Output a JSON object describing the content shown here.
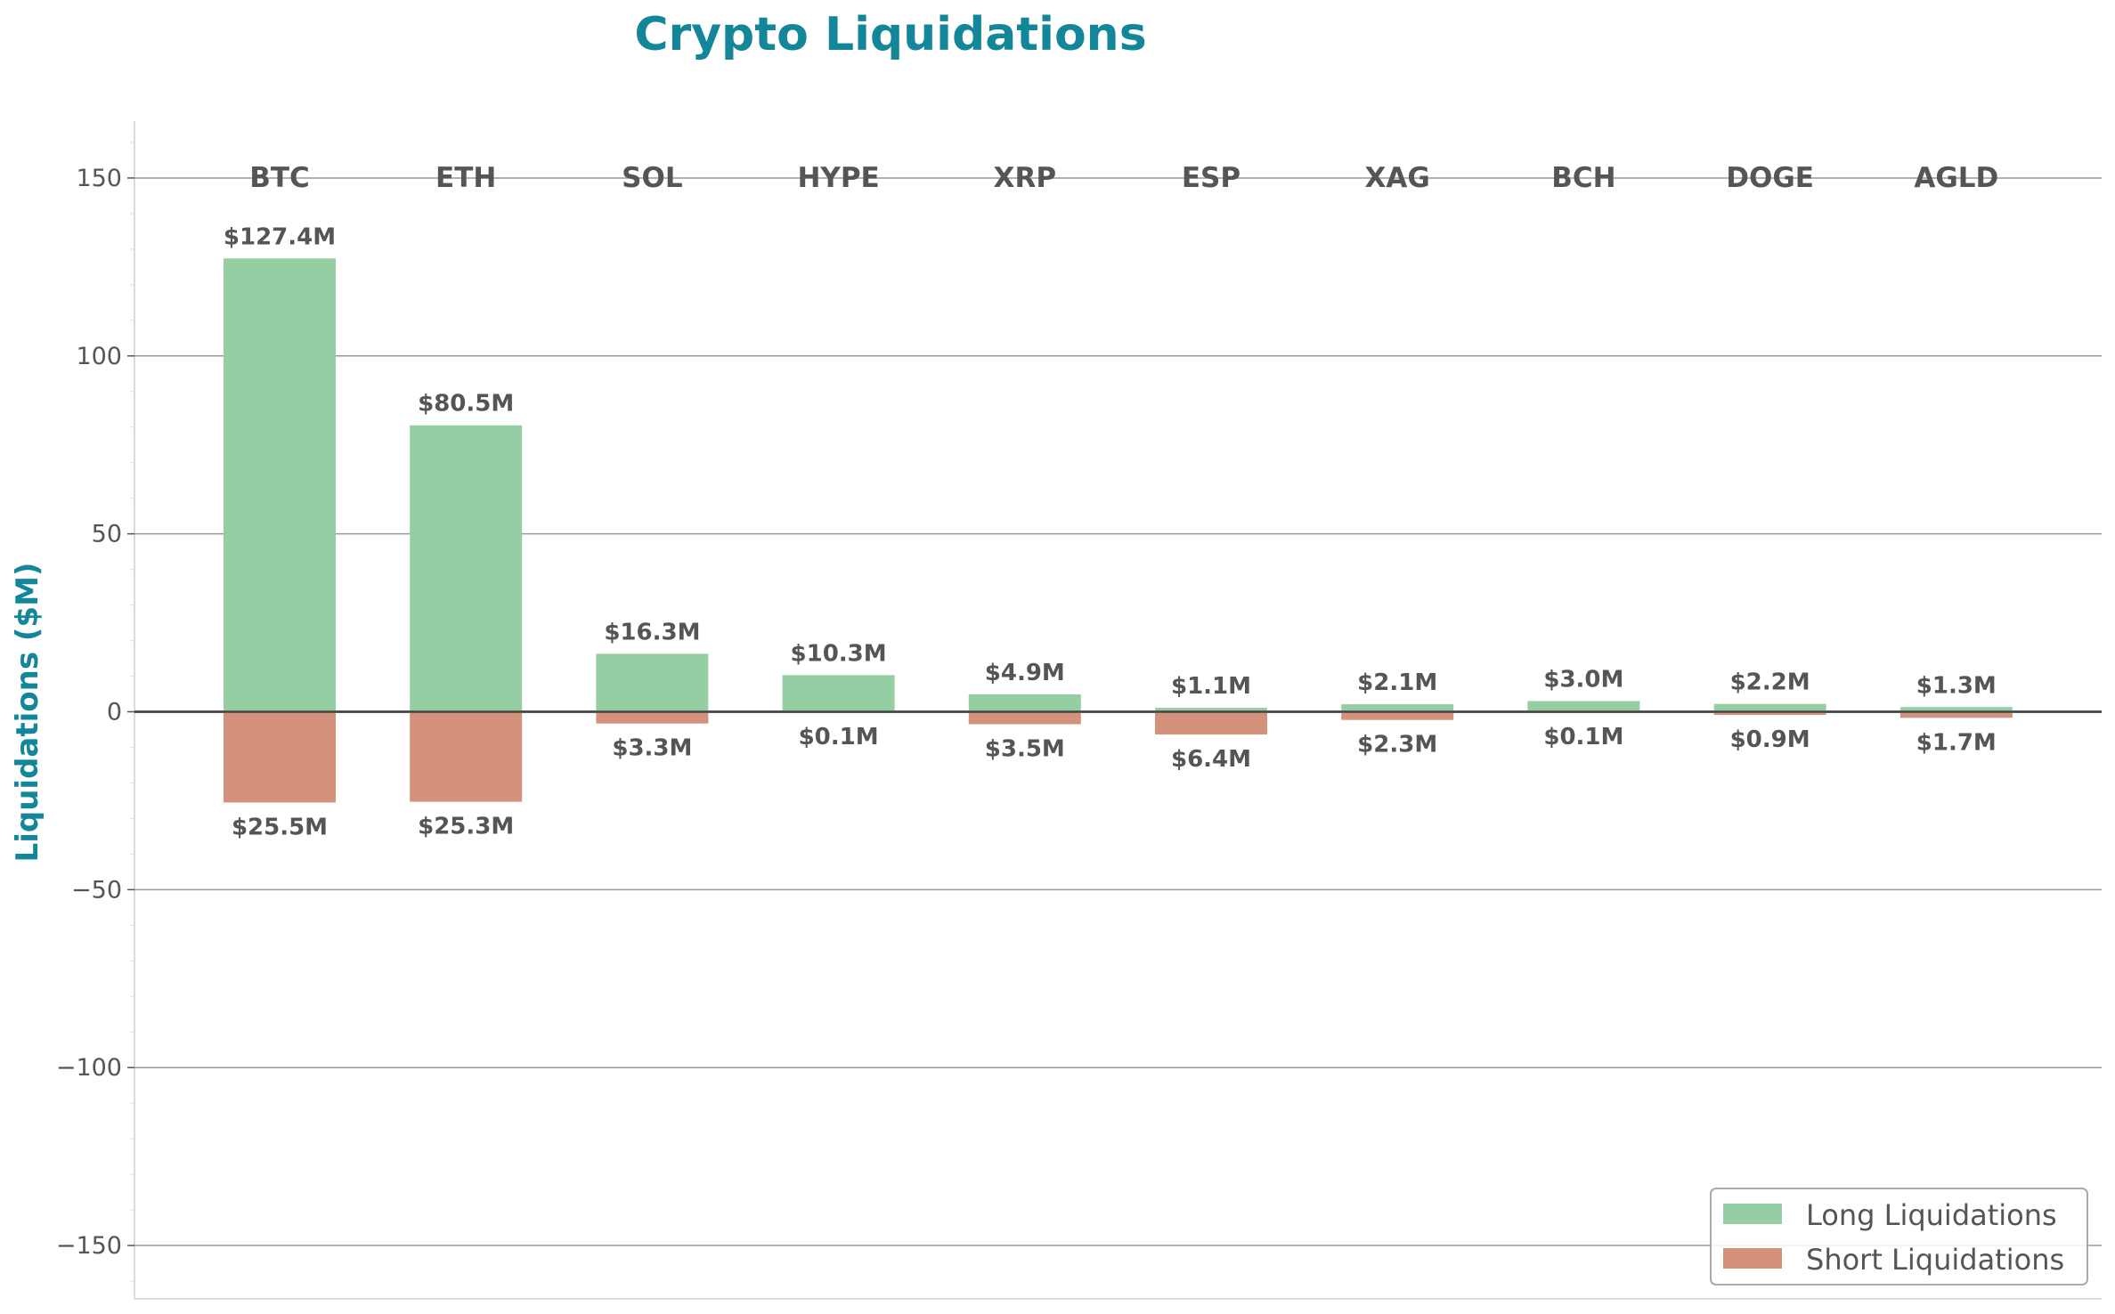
{
  "chart_data": {
    "type": "bar",
    "title": "Crypto Liquidations",
    "xlabel": "",
    "ylabel": "Liquidations ($M)",
    "ylim": [
      -165,
      166
    ],
    "yticks": [
      150,
      100,
      50,
      0,
      -50,
      -100,
      -150
    ],
    "ytick_labels": [
      "150",
      "100",
      "50",
      "0",
      "−50",
      "−100",
      "−150"
    ],
    "grid": true,
    "legend_position": "bottom-right",
    "categories": [
      "BTC",
      "ETH",
      "SOL",
      "HYPE",
      "XRP",
      "ESP",
      "XAG",
      "BCH",
      "DOGE",
      "AGLD"
    ],
    "series": [
      {
        "name": "Long Liquidations",
        "color": "#95cea2",
        "values": [
          127.4,
          80.5,
          16.3,
          10.3,
          4.9,
          1.1,
          2.1,
          3.0,
          2.2,
          1.3
        ],
        "labels": [
          "$127.4M",
          "$80.5M",
          "$16.3M",
          "$10.3M",
          "$4.9M",
          "$1.1M",
          "$2.1M",
          "$3.0M",
          "$2.2M",
          "$1.3M"
        ]
      },
      {
        "name": "Short Liquidations",
        "color": "#d4917c",
        "values": [
          -25.5,
          -25.3,
          -3.3,
          -0.1,
          -3.5,
          -6.4,
          -2.3,
          -0.1,
          -0.9,
          -1.7
        ],
        "labels": [
          "$25.5M",
          "$25.3M",
          "$3.3M",
          "$0.1M",
          "$3.5M",
          "$6.4M",
          "$2.3M",
          "$0.1M",
          "$0.9M",
          "$1.7M"
        ]
      }
    ],
    "colors": {
      "title": "#14869a",
      "text": "#555555",
      "grid": "#999999",
      "zero_line": "#444444"
    }
  }
}
